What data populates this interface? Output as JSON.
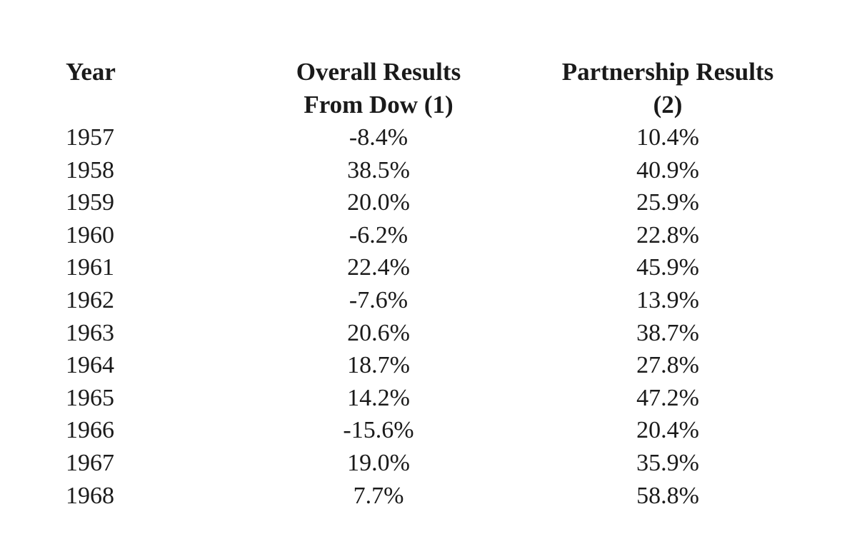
{
  "headers": {
    "year": "Year",
    "dow_line1": "Overall Results",
    "dow_line2": "From Dow (1)",
    "partnership_line1": "Partnership Results",
    "partnership_line2": "(2)"
  },
  "rows": [
    {
      "year": "1957",
      "dow": "-8.4%",
      "partnership": "10.4%"
    },
    {
      "year": "1958",
      "dow": "38.5%",
      "partnership": "40.9%"
    },
    {
      "year": "1959",
      "dow": "20.0%",
      "partnership": "25.9%"
    },
    {
      "year": "1960",
      "dow": "-6.2%",
      "partnership": "22.8%"
    },
    {
      "year": "1961",
      "dow": "22.4%",
      "partnership": "45.9%"
    },
    {
      "year": "1962",
      "dow": "-7.6%",
      "partnership": "13.9%"
    },
    {
      "year": "1963",
      "dow": "20.6%",
      "partnership": "38.7%"
    },
    {
      "year": "1964",
      "dow": "18.7%",
      "partnership": "27.8%"
    },
    {
      "year": "1965",
      "dow": "14.2%",
      "partnership": "47.2%"
    },
    {
      "year": "1966",
      "dow": "-15.6%",
      "partnership": "20.4%"
    },
    {
      "year": "1967",
      "dow": "19.0%",
      "partnership": "35.9%"
    },
    {
      "year": "1968",
      "dow": "7.7%",
      "partnership": "58.8%"
    }
  ]
}
